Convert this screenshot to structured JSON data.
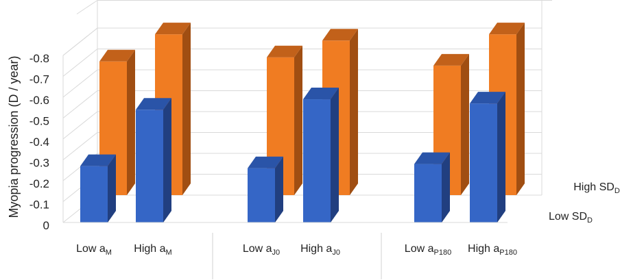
{
  "chart_data": {
    "type": "bar",
    "subtype": "3d-clustered-column",
    "ylabel": "Myopia progression (D / year)",
    "y_ticks": [
      "0",
      "-0.1",
      "-0.2",
      "-0.3",
      "-0.4",
      "-0.5",
      "-0.6",
      "-0.7",
      "-0.8"
    ],
    "ylim": [
      0,
      -0.8
    ],
    "grid": true,
    "categories": [
      {
        "main": "Low a",
        "sub": "M"
      },
      {
        "main": "High a",
        "sub": "M"
      },
      {
        "main": "Low a",
        "sub": "J0"
      },
      {
        "main": "High a",
        "sub": "J0"
      },
      {
        "main": "Low a",
        "sub": "P180"
      },
      {
        "main": "High a",
        "sub": "P180"
      }
    ],
    "series": [
      {
        "name": {
          "main": "Low SD",
          "sub": "D"
        },
        "color": "#3566c6",
        "side": "#213f80",
        "top": "#2a54a8",
        "values": [
          -0.27,
          -0.54,
          -0.26,
          -0.59,
          -0.28,
          -0.57
        ]
      },
      {
        "name": {
          "main": "High SD",
          "sub": "D"
        },
        "color": "#f07c22",
        "side": "#a04e12",
        "top": "#c2611a",
        "values": [
          -0.64,
          -0.77,
          -0.66,
          -0.74,
          -0.62,
          -0.77
        ]
      }
    ],
    "legend_position": "right"
  }
}
